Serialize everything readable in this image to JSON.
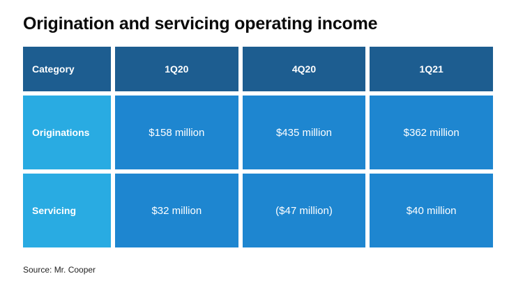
{
  "title": "Origination and servicing operating income",
  "source": "Source: Mr. Cooper",
  "colors": {
    "header_bg": "#1d5d90",
    "category_bg": "#29abe2",
    "cell_bg": "#1e86d0",
    "table_text": "#ffffff",
    "title_color": "#0a0a0a",
    "source_color": "#222222"
  },
  "chart_data": {
    "type": "table",
    "title": "Origination and servicing operating income",
    "columns": [
      "Category",
      "1Q20",
      "4Q20",
      "1Q21"
    ],
    "rows": [
      {
        "category": "Originations",
        "values": [
          "$158 million",
          "$435 million",
          "$362 million"
        ]
      },
      {
        "category": "Servicing",
        "values": [
          "$32 million",
          "($47 million)",
          "$40 million"
        ]
      }
    ],
    "source": "Source: Mr. Cooper",
    "layout": {
      "grid": "off",
      "legend": "none"
    }
  }
}
